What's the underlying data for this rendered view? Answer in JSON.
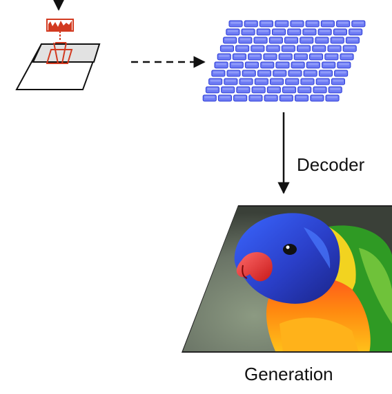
{
  "labels": {
    "decoder": "Decoder",
    "generation": "Generation"
  },
  "token_grid": {
    "rows": 10,
    "cols": 9
  },
  "output_image": {
    "subject": "rainbow lorikeet parrot"
  },
  "colors": {
    "token_fill": "#6e7cf4",
    "token_stroke": "#2b3bd6",
    "token_highlight": "#a9b3ff",
    "histogram": "#d23a20",
    "patch_fill": "#e2e2e2",
    "arrow": "#111111"
  },
  "icons": {
    "histogram": "histogram-icon",
    "parrot": "parrot-illustration"
  }
}
